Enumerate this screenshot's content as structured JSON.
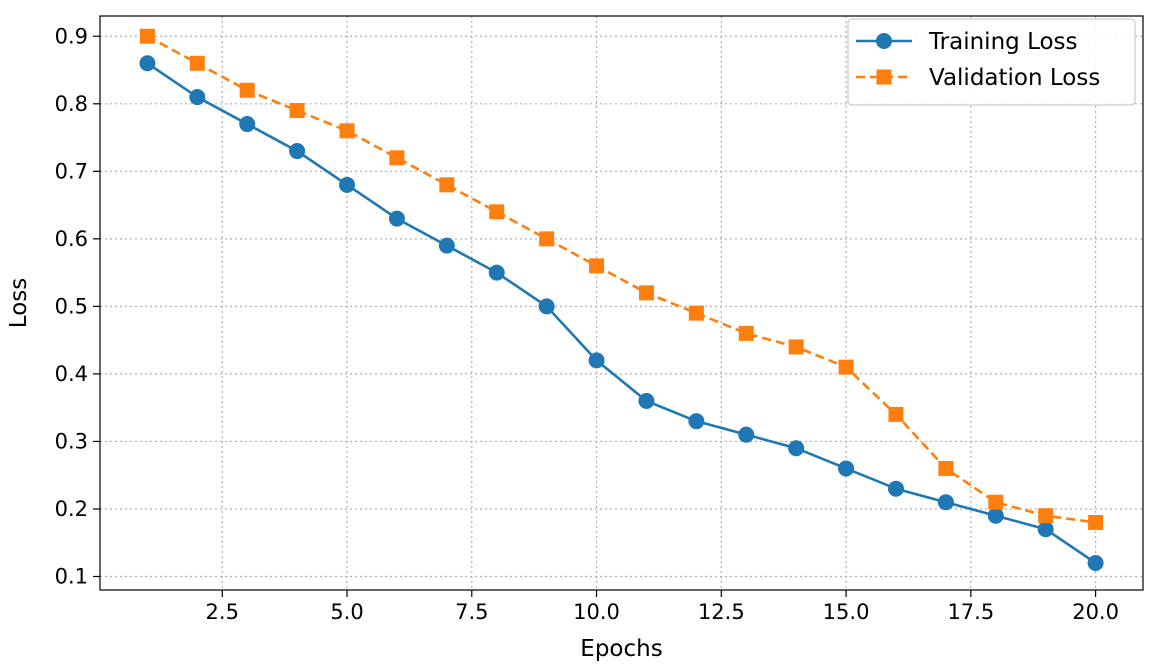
{
  "chart_data": {
    "type": "line",
    "title": "",
    "xlabel": "Epochs",
    "ylabel": "Loss",
    "xlim": [
      0.05,
      20.95
    ],
    "ylim": [
      0.08,
      0.93
    ],
    "xticks": [
      2.5,
      5.0,
      7.5,
      10.0,
      12.5,
      15.0,
      17.5,
      20.0
    ],
    "xtick_labels": [
      "2.5",
      "5.0",
      "7.5",
      "10.0",
      "12.5",
      "15.0",
      "17.5",
      "20.0"
    ],
    "yticks": [
      0.1,
      0.2,
      0.3,
      0.4,
      0.5,
      0.6,
      0.7,
      0.8,
      0.9
    ],
    "ytick_labels": [
      "0.1",
      "0.2",
      "0.3",
      "0.4",
      "0.5",
      "0.6",
      "0.7",
      "0.8",
      "0.9"
    ],
    "grid": true,
    "legend_position": "top-right",
    "x": [
      1,
      2,
      3,
      4,
      5,
      6,
      7,
      8,
      9,
      10,
      11,
      12,
      13,
      14,
      15,
      16,
      17,
      18,
      19,
      20
    ],
    "series": [
      {
        "name": "Training Loss",
        "color": "#1f77b4",
        "linestyle": "solid",
        "marker": "circle",
        "values": [
          0.86,
          0.81,
          0.77,
          0.73,
          0.68,
          0.63,
          0.59,
          0.55,
          0.5,
          0.42,
          0.36,
          0.33,
          0.31,
          0.29,
          0.26,
          0.23,
          0.21,
          0.19,
          0.17,
          0.12
        ]
      },
      {
        "name": "Validation Loss",
        "color": "#ff7f0e",
        "linestyle": "dashed",
        "marker": "square",
        "values": [
          0.9,
          0.86,
          0.82,
          0.79,
          0.76,
          0.72,
          0.68,
          0.64,
          0.6,
          0.56,
          0.52,
          0.49,
          0.46,
          0.44,
          0.41,
          0.34,
          0.26,
          0.21,
          0.19,
          0.18
        ]
      }
    ]
  }
}
